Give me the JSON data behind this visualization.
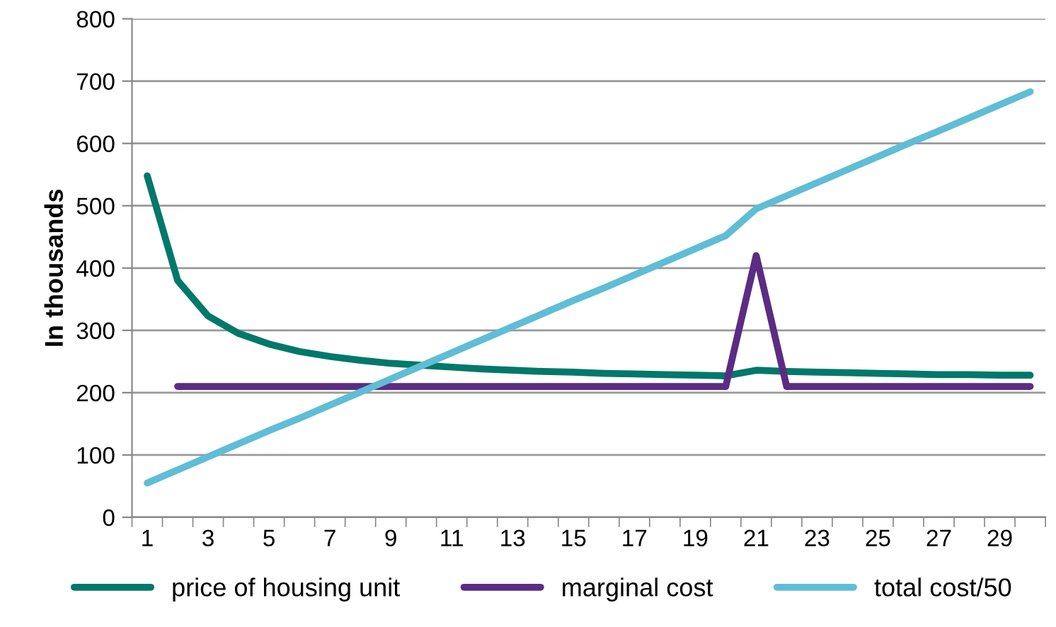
{
  "chart_data": {
    "type": "line",
    "ylabel": "In thousands",
    "categories": [
      "1",
      null,
      "3",
      null,
      "5",
      null,
      "7",
      null,
      "9",
      null,
      "11",
      null,
      "13",
      null,
      "15",
      null,
      "17",
      null,
      "19",
      null,
      "21",
      null,
      "23",
      null,
      "25",
      null,
      "27",
      null,
      "29",
      null
    ],
    "series": [
      {
        "name": "price of housing unit",
        "color": "#00786a",
        "values": [
          548,
          380,
          323,
          295,
          278,
          266,
          258,
          252,
          247,
          244,
          241,
          238,
          236,
          234,
          233,
          231,
          230,
          229,
          228,
          227,
          236,
          234,
          233,
          232,
          231,
          230,
          229,
          229,
          228,
          228
        ]
      },
      {
        "name": "marginal cost",
        "color": "#5b2c83",
        "values": [
          null,
          210,
          210,
          210,
          210,
          210,
          210,
          210,
          210,
          210,
          210,
          210,
          210,
          210,
          210,
          210,
          210,
          210,
          210,
          210,
          420,
          210,
          210,
          210,
          210,
          210,
          210,
          210,
          210,
          210
        ]
      },
      {
        "name": "total cost/50",
        "color": "#5fbdd6",
        "values": [
          55,
          76,
          97,
          118,
          139,
          159,
          180,
          201,
          222,
          243,
          264,
          285,
          306,
          327,
          348,
          368,
          389,
          410,
          431,
          452,
          495,
          516,
          537,
          558,
          579,
          600,
          620,
          641,
          662,
          683
        ]
      }
    ],
    "ylim": [
      0,
      800
    ],
    "yticks": [
      0,
      100,
      200,
      300,
      400,
      500,
      600,
      700,
      800
    ],
    "grid": "y",
    "legend": "bottom",
    "marker": "none",
    "line_style": "solid"
  }
}
